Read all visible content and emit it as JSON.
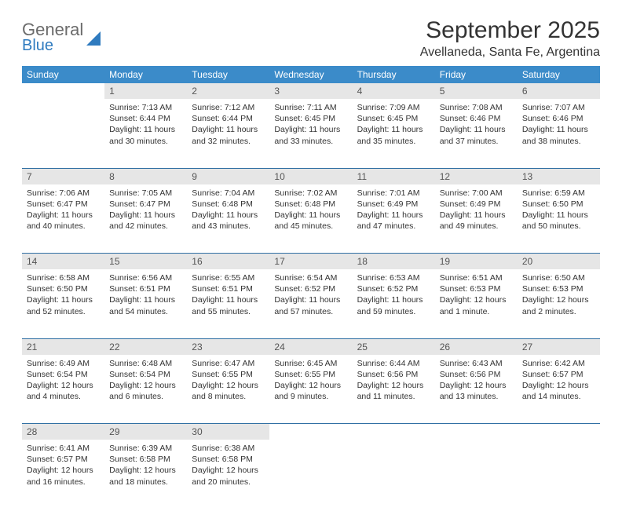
{
  "brand": {
    "text1": "General",
    "text2": "Blue",
    "color_gray": "#6b6b6b",
    "color_blue": "#2f7bbf"
  },
  "title": "September 2025",
  "location": "Avellaneda, Santa Fe, Argentina",
  "header_bg": "#3b8bc9",
  "header_fg": "#ffffff",
  "daynum_bg": "#e6e6e6",
  "rule_color": "#2f6fa3",
  "weekdays": [
    "Sunday",
    "Monday",
    "Tuesday",
    "Wednesday",
    "Thursday",
    "Friday",
    "Saturday"
  ],
  "weeks": [
    [
      null,
      {
        "n": "1",
        "sr": "Sunrise: 7:13 AM",
        "ss": "Sunset: 6:44 PM",
        "dl": "Daylight: 11 hours and 30 minutes."
      },
      {
        "n": "2",
        "sr": "Sunrise: 7:12 AM",
        "ss": "Sunset: 6:44 PM",
        "dl": "Daylight: 11 hours and 32 minutes."
      },
      {
        "n": "3",
        "sr": "Sunrise: 7:11 AM",
        "ss": "Sunset: 6:45 PM",
        "dl": "Daylight: 11 hours and 33 minutes."
      },
      {
        "n": "4",
        "sr": "Sunrise: 7:09 AM",
        "ss": "Sunset: 6:45 PM",
        "dl": "Daylight: 11 hours and 35 minutes."
      },
      {
        "n": "5",
        "sr": "Sunrise: 7:08 AM",
        "ss": "Sunset: 6:46 PM",
        "dl": "Daylight: 11 hours and 37 minutes."
      },
      {
        "n": "6",
        "sr": "Sunrise: 7:07 AM",
        "ss": "Sunset: 6:46 PM",
        "dl": "Daylight: 11 hours and 38 minutes."
      }
    ],
    [
      {
        "n": "7",
        "sr": "Sunrise: 7:06 AM",
        "ss": "Sunset: 6:47 PM",
        "dl": "Daylight: 11 hours and 40 minutes."
      },
      {
        "n": "8",
        "sr": "Sunrise: 7:05 AM",
        "ss": "Sunset: 6:47 PM",
        "dl": "Daylight: 11 hours and 42 minutes."
      },
      {
        "n": "9",
        "sr": "Sunrise: 7:04 AM",
        "ss": "Sunset: 6:48 PM",
        "dl": "Daylight: 11 hours and 43 minutes."
      },
      {
        "n": "10",
        "sr": "Sunrise: 7:02 AM",
        "ss": "Sunset: 6:48 PM",
        "dl": "Daylight: 11 hours and 45 minutes."
      },
      {
        "n": "11",
        "sr": "Sunrise: 7:01 AM",
        "ss": "Sunset: 6:49 PM",
        "dl": "Daylight: 11 hours and 47 minutes."
      },
      {
        "n": "12",
        "sr": "Sunrise: 7:00 AM",
        "ss": "Sunset: 6:49 PM",
        "dl": "Daylight: 11 hours and 49 minutes."
      },
      {
        "n": "13",
        "sr": "Sunrise: 6:59 AM",
        "ss": "Sunset: 6:50 PM",
        "dl": "Daylight: 11 hours and 50 minutes."
      }
    ],
    [
      {
        "n": "14",
        "sr": "Sunrise: 6:58 AM",
        "ss": "Sunset: 6:50 PM",
        "dl": "Daylight: 11 hours and 52 minutes."
      },
      {
        "n": "15",
        "sr": "Sunrise: 6:56 AM",
        "ss": "Sunset: 6:51 PM",
        "dl": "Daylight: 11 hours and 54 minutes."
      },
      {
        "n": "16",
        "sr": "Sunrise: 6:55 AM",
        "ss": "Sunset: 6:51 PM",
        "dl": "Daylight: 11 hours and 55 minutes."
      },
      {
        "n": "17",
        "sr": "Sunrise: 6:54 AM",
        "ss": "Sunset: 6:52 PM",
        "dl": "Daylight: 11 hours and 57 minutes."
      },
      {
        "n": "18",
        "sr": "Sunrise: 6:53 AM",
        "ss": "Sunset: 6:52 PM",
        "dl": "Daylight: 11 hours and 59 minutes."
      },
      {
        "n": "19",
        "sr": "Sunrise: 6:51 AM",
        "ss": "Sunset: 6:53 PM",
        "dl": "Daylight: 12 hours and 1 minute."
      },
      {
        "n": "20",
        "sr": "Sunrise: 6:50 AM",
        "ss": "Sunset: 6:53 PM",
        "dl": "Daylight: 12 hours and 2 minutes."
      }
    ],
    [
      {
        "n": "21",
        "sr": "Sunrise: 6:49 AM",
        "ss": "Sunset: 6:54 PM",
        "dl": "Daylight: 12 hours and 4 minutes."
      },
      {
        "n": "22",
        "sr": "Sunrise: 6:48 AM",
        "ss": "Sunset: 6:54 PM",
        "dl": "Daylight: 12 hours and 6 minutes."
      },
      {
        "n": "23",
        "sr": "Sunrise: 6:47 AM",
        "ss": "Sunset: 6:55 PM",
        "dl": "Daylight: 12 hours and 8 minutes."
      },
      {
        "n": "24",
        "sr": "Sunrise: 6:45 AM",
        "ss": "Sunset: 6:55 PM",
        "dl": "Daylight: 12 hours and 9 minutes."
      },
      {
        "n": "25",
        "sr": "Sunrise: 6:44 AM",
        "ss": "Sunset: 6:56 PM",
        "dl": "Daylight: 12 hours and 11 minutes."
      },
      {
        "n": "26",
        "sr": "Sunrise: 6:43 AM",
        "ss": "Sunset: 6:56 PM",
        "dl": "Daylight: 12 hours and 13 minutes."
      },
      {
        "n": "27",
        "sr": "Sunrise: 6:42 AM",
        "ss": "Sunset: 6:57 PM",
        "dl": "Daylight: 12 hours and 14 minutes."
      }
    ],
    [
      {
        "n": "28",
        "sr": "Sunrise: 6:41 AM",
        "ss": "Sunset: 6:57 PM",
        "dl": "Daylight: 12 hours and 16 minutes."
      },
      {
        "n": "29",
        "sr": "Sunrise: 6:39 AM",
        "ss": "Sunset: 6:58 PM",
        "dl": "Daylight: 12 hours and 18 minutes."
      },
      {
        "n": "30",
        "sr": "Sunrise: 6:38 AM",
        "ss": "Sunset: 6:58 PM",
        "dl": "Daylight: 12 hours and 20 minutes."
      },
      null,
      null,
      null,
      null
    ]
  ]
}
